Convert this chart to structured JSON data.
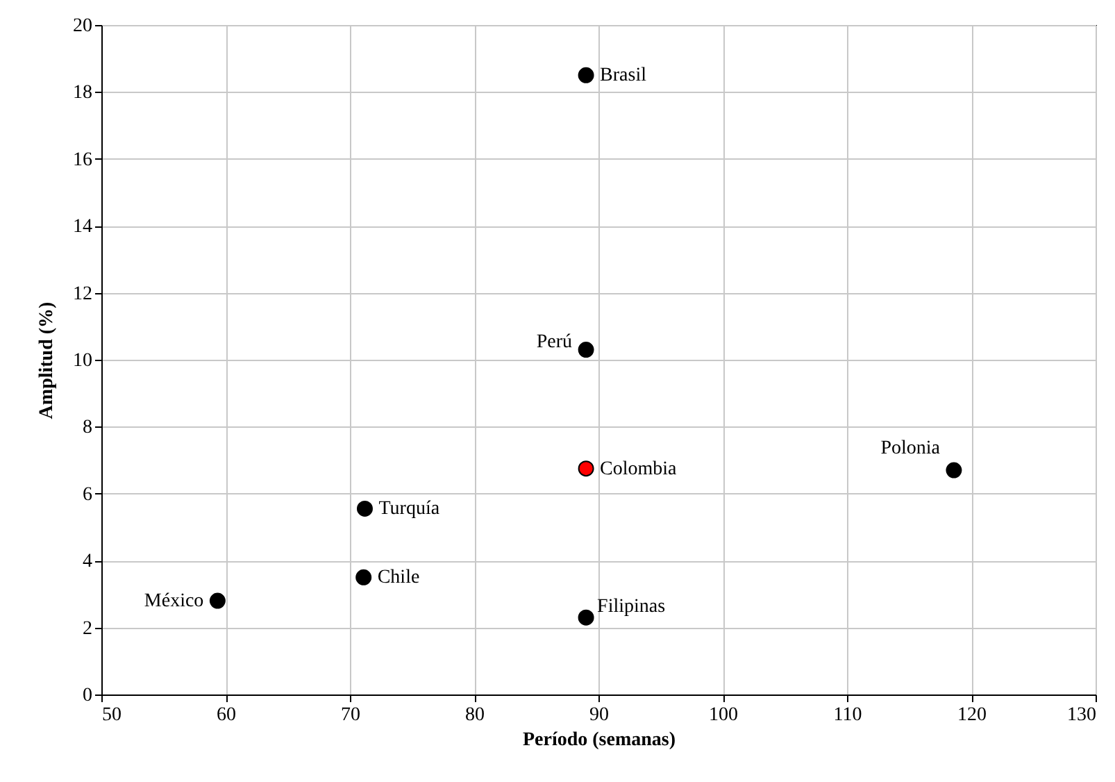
{
  "chart_data": {
    "type": "scatter",
    "xlabel": "Período (semanas)",
    "ylabel": "Amplitud (%)",
    "x": [
      89.0,
      89.0,
      89.0,
      118.6,
      71.2,
      71.1,
      59.35,
      89.0
    ],
    "values": [
      18.5,
      10.3,
      6.75,
      6.7,
      5.55,
      3.5,
      2.8,
      2.3
    ],
    "colors": [
      "#000000",
      "#000000",
      "#ff0000",
      "#000000",
      "#000000",
      "#000000",
      "#000000",
      "#000000"
    ],
    "annotations": [
      {
        "text": "Brasil",
        "x": 89.0,
        "y": 18.5
      },
      {
        "text": "Perú",
        "x": 89.0,
        "y": 10.3
      },
      {
        "text": "Colombia",
        "x": 89.0,
        "y": 6.75
      },
      {
        "text": "Polonia",
        "x": 118.6,
        "y": 6.7
      },
      {
        "text": "Turquía",
        "x": 71.2,
        "y": 5.55
      },
      {
        "text": "Chile",
        "x": 71.1,
        "y": 3.5
      },
      {
        "text": "México",
        "x": 59.35,
        "y": 2.8
      },
      {
        "text": "Filipinas",
        "x": 89.0,
        "y": 2.3
      }
    ],
    "xlim": [
      50,
      130
    ],
    "xticks": [
      50,
      60,
      70,
      80,
      90,
      100,
      110,
      120,
      130
    ],
    "ylim": [
      0,
      20
    ],
    "yticks": [
      0,
      2,
      4,
      6,
      8,
      10,
      12,
      14,
      16,
      18,
      20
    ],
    "grid": true,
    "marker": "circle"
  }
}
